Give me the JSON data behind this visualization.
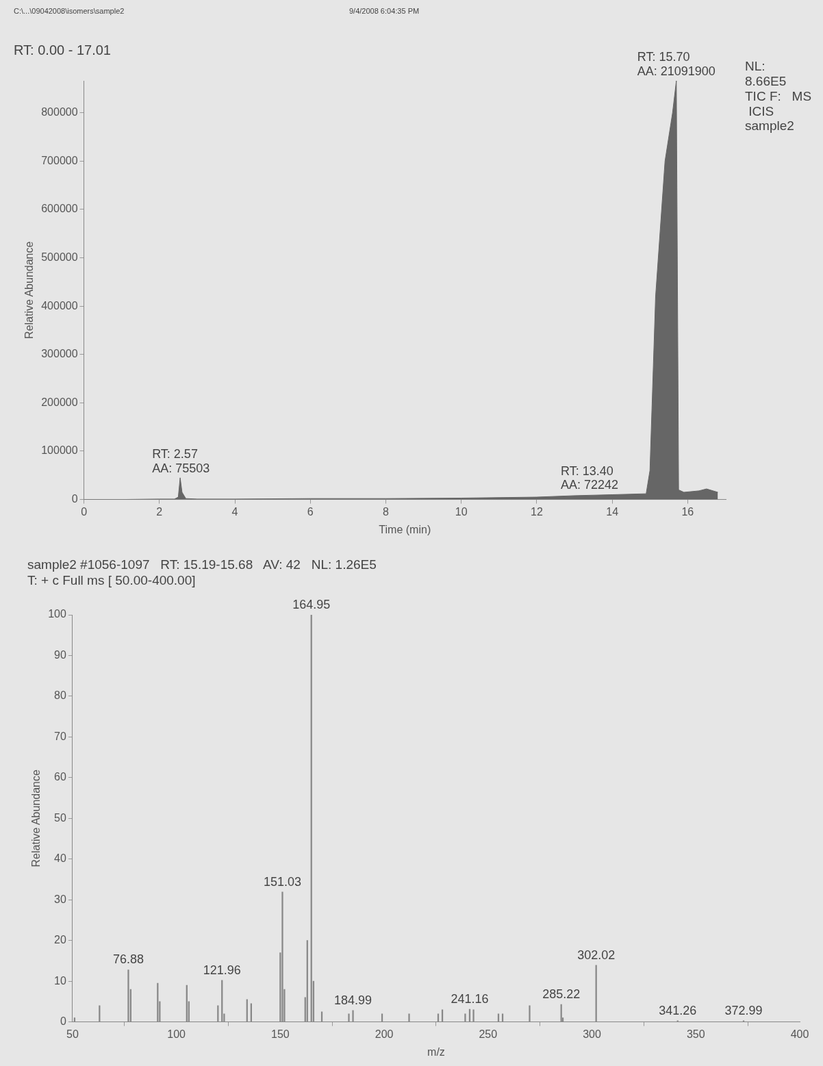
{
  "chart_data": [
    {
      "type": "area",
      "title": "RT: 0.00 - 17.01",
      "xlabel": "Time (min)",
      "ylabel": "Relative Abundance",
      "color": "#666666",
      "x": [
        0,
        1,
        2,
        2.4,
        2.5,
        2.55,
        2.6,
        2.7,
        3,
        4,
        6,
        8,
        10,
        12,
        13,
        14,
        14.9,
        15.0,
        15.15,
        15.4,
        15.6,
        15.7,
        15.76,
        15.9,
        16.3,
        16.5,
        16.8
      ],
      "values": [
        0,
        0,
        1000,
        1000,
        5000,
        45000,
        15000,
        2000,
        1000,
        1000,
        2000,
        2000,
        3000,
        5000,
        8000,
        10000,
        12000,
        60000,
        420000,
        700000,
        800000,
        866000,
        20000,
        15000,
        18000,
        22000,
        15000
      ],
      "xlim": [
        0,
        17.01
      ],
      "xticks": [
        0,
        2,
        4,
        6,
        8,
        10,
        12,
        14,
        16
      ],
      "ylim": [
        0,
        866000
      ],
      "yticks": [
        0,
        100000,
        200000,
        300000,
        400000,
        500000,
        600000,
        700000,
        800000
      ],
      "annotations": [
        "C:\\...\\09042008\\isomers\\sample2",
        "9/4/2008 6:04:35 PM",
        "NL:\n8.66E5\nTIC F:   MS\n ICIS\nsample2",
        {
          "text": "RT: 2.57\nAA: 75503",
          "x": 2.57,
          "y": 45000
        },
        {
          "text": "RT: 13.40\nAA: 72242",
          "x": 13.4,
          "y": 10000
        },
        {
          "text": "RT: 15.70\nAA: 21091900",
          "x": 15.7,
          "y": 866000
        }
      ]
    },
    {
      "type": "bar",
      "title": "sample2 #1056-1097   RT: 15.19-15.68   AV: 42   NL: 1.26E5",
      "subtitle": "T: + c Full ms [ 50.00-400.00]",
      "xlabel": "m/z",
      "ylabel": "Relative Abundance",
      "color": "#888888",
      "x": [
        51,
        63,
        76.88,
        78,
        91,
        92,
        105,
        106,
        120,
        121.96,
        123,
        134,
        136,
        150,
        151.03,
        152,
        162,
        163,
        164.95,
        166,
        170,
        183,
        184.99,
        199,
        212,
        226,
        228,
        239,
        241.16,
        243,
        255,
        257,
        270,
        285.22,
        286,
        302.02,
        341.26,
        372.99
      ],
      "values": [
        1,
        4,
        12.8,
        8,
        9.5,
        5,
        9,
        5,
        4,
        10.2,
        2,
        5.5,
        4.5,
        17,
        31.9,
        8,
        6,
        20,
        100,
        10,
        2.5,
        2,
        2.8,
        2,
        2,
        2,
        3,
        2,
        3.1,
        3,
        2,
        2,
        4,
        4.3,
        1,
        13.9,
        0.3,
        0.3
      ],
      "xlim": [
        50,
        400
      ],
      "xticks": [
        50,
        100,
        150,
        200,
        250,
        300,
        350,
        400
      ],
      "ylim": [
        0,
        100
      ],
      "yticks": [
        0,
        10,
        20,
        30,
        40,
        50,
        60,
        70,
        80,
        90,
        100
      ],
      "annotations": [
        {
          "text": "76.88",
          "x": 76.88,
          "y": 12.8
        },
        {
          "text": "121.96",
          "x": 121.96,
          "y": 10.2
        },
        {
          "text": "151.03",
          "x": 151.03,
          "y": 31.9
        },
        {
          "text": "164.95",
          "x": 164.95,
          "y": 100
        },
        {
          "text": "184.99",
          "x": 184.99,
          "y": 2.8
        },
        {
          "text": "241.16",
          "x": 241.16,
          "y": 3.1
        },
        {
          "text": "285.22",
          "x": 285.22,
          "y": 4.3
        },
        {
          "text": "302.02",
          "x": 302.02,
          "y": 13.9
        },
        {
          "text": "341.26",
          "x": 341.26,
          "y": 0.3
        },
        {
          "text": "372.99",
          "x": 372.99,
          "y": 0.3
        }
      ]
    }
  ]
}
